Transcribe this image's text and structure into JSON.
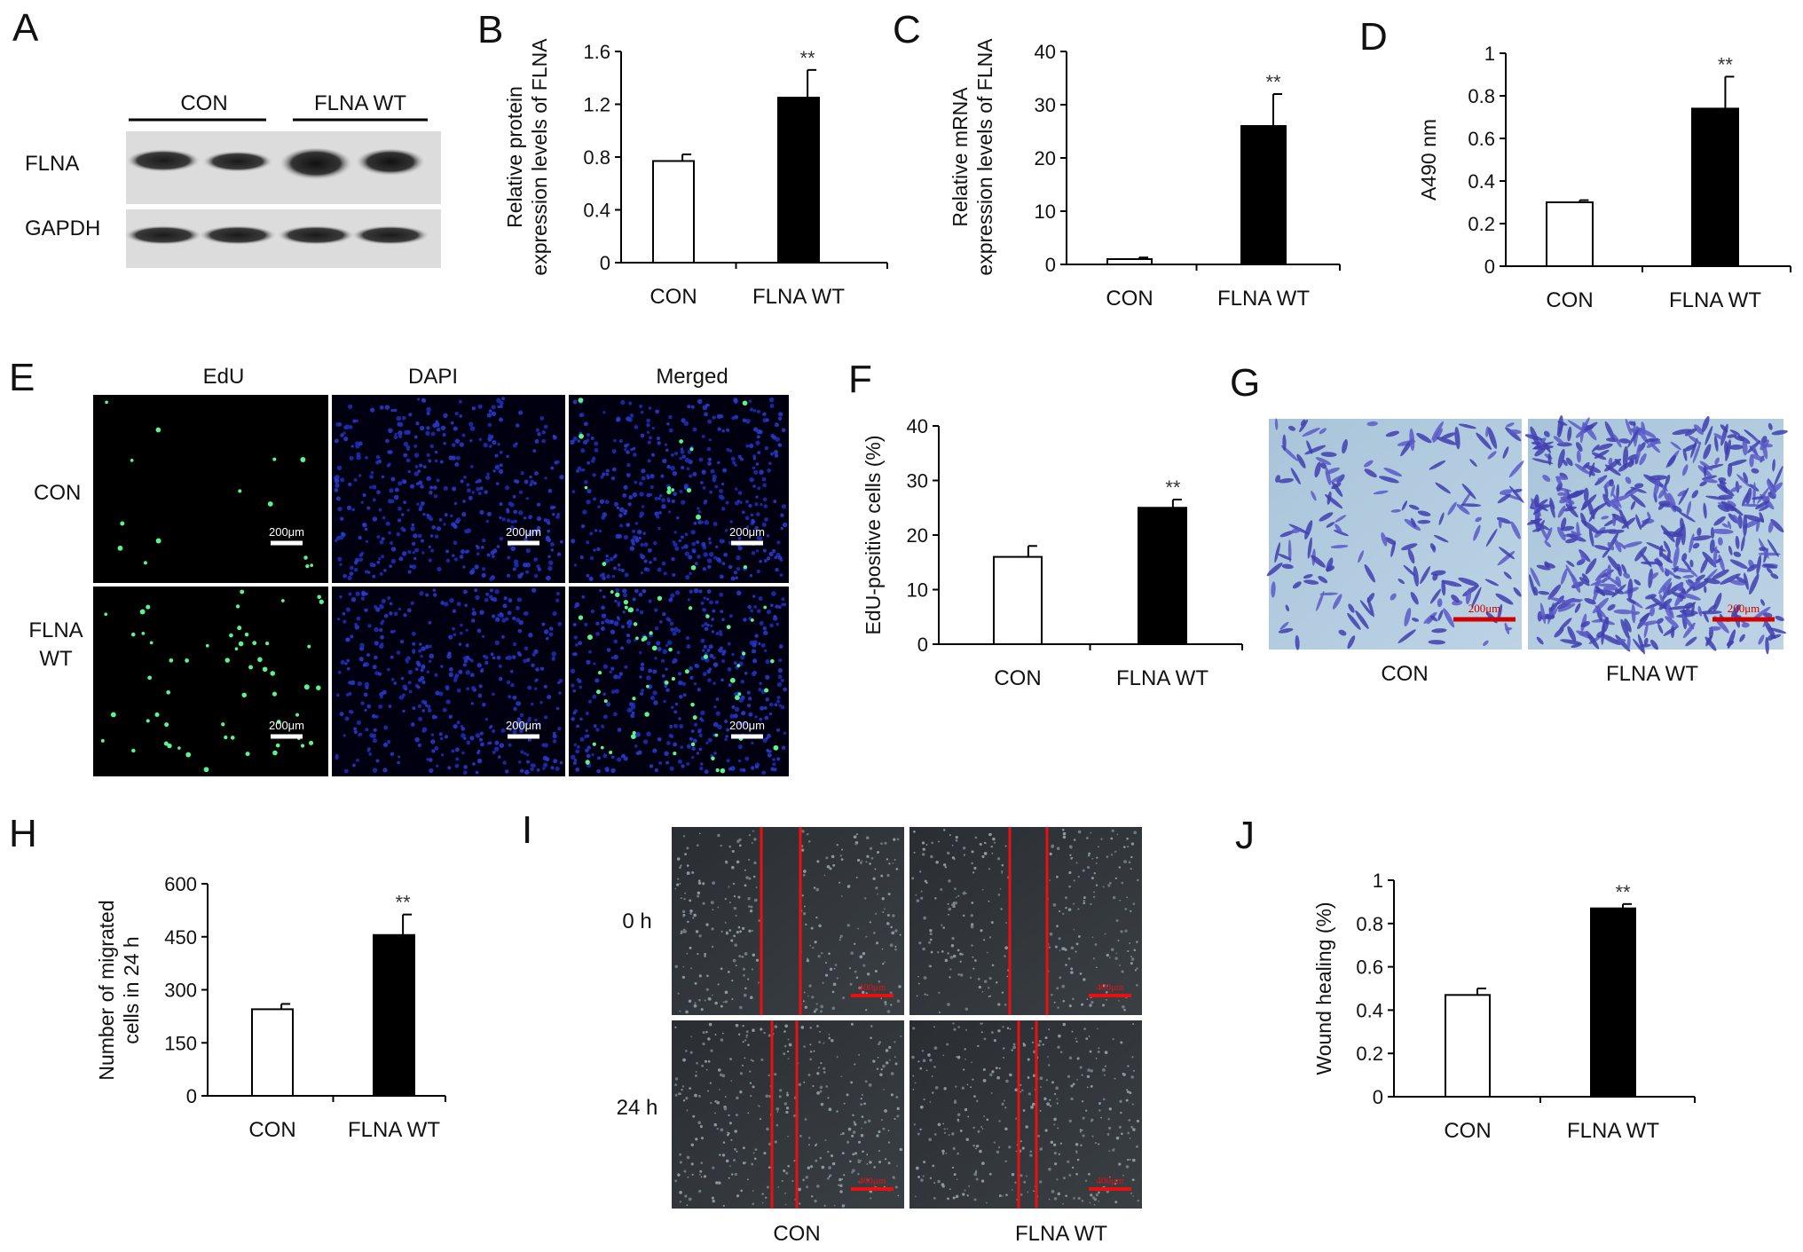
{
  "panels": {
    "A": {
      "letter": "A",
      "groups": [
        "CON",
        "FLNA WT"
      ],
      "rows": [
        "FLNA",
        "GAPDH"
      ]
    },
    "E": {
      "letter": "E",
      "columns": [
        "EdU",
        "DAPI",
        "Merged"
      ],
      "rows": [
        "CON",
        "FLNA WT"
      ],
      "scale_bar": "200μm"
    },
    "G": {
      "letter": "G",
      "labels": [
        "CON",
        "FLNA WT"
      ],
      "scale_bar": "200μm"
    },
    "I": {
      "letter": "I",
      "rows": [
        "0 h",
        "24 h"
      ],
      "columns": [
        "CON",
        "FLNA WT"
      ],
      "scale_bar": "400μm"
    }
  },
  "chart_data": [
    {
      "id": "B",
      "letter": "B",
      "type": "bar",
      "categories": [
        "CON",
        "FLNA WT"
      ],
      "values": [
        0.77,
        1.25
      ],
      "errors": [
        0.05,
        0.21
      ],
      "bar_fills": [
        "#ffffff",
        "#000000"
      ],
      "ylabel": "Relative protein expression levels of FLNA",
      "ylim": [
        0,
        1.6
      ],
      "yticks": [
        "0",
        "0.4",
        "0.8",
        "1.2",
        "1.6"
      ],
      "significance": [
        "",
        "**"
      ]
    },
    {
      "id": "C",
      "letter": "C",
      "type": "bar",
      "categories": [
        "CON",
        "FLNA WT"
      ],
      "values": [
        1,
        26
      ],
      "errors": [
        0.3,
        6
      ],
      "bar_fills": [
        "#ffffff",
        "#000000"
      ],
      "ylabel": "Relative mRNA expression levels of FLNA",
      "ylim": [
        0,
        40
      ],
      "yticks": [
        "0",
        "10",
        "20",
        "30",
        "40"
      ],
      "significance": [
        "",
        "**"
      ]
    },
    {
      "id": "D",
      "letter": "D",
      "type": "bar",
      "categories": [
        "CON",
        "FLNA WT"
      ],
      "values": [
        0.3,
        0.74
      ],
      "errors": [
        0.01,
        0.15
      ],
      "bar_fills": [
        "#ffffff",
        "#000000"
      ],
      "ylabel": "A490 nm",
      "ylim": [
        0,
        1
      ],
      "yticks": [
        "0",
        "0.2",
        "0.4",
        "0.6",
        "0.8",
        "1"
      ],
      "significance": [
        "",
        "**"
      ]
    },
    {
      "id": "F",
      "letter": "F",
      "type": "bar",
      "categories": [
        "CON",
        "FLNA WT"
      ],
      "values": [
        16,
        25
      ],
      "errors": [
        2,
        1.5
      ],
      "bar_fills": [
        "#ffffff",
        "#000000"
      ],
      "ylabel": "EdU-positive cells (%)",
      "ylim": [
        0,
        40
      ],
      "yticks": [
        "0",
        "10",
        "20",
        "30",
        "40"
      ],
      "significance": [
        "",
        "**"
      ]
    },
    {
      "id": "H",
      "letter": "H",
      "type": "bar",
      "categories": [
        "CON",
        "FLNA WT"
      ],
      "values": [
        245,
        455
      ],
      "errors": [
        15,
        58
      ],
      "bar_fills": [
        "#ffffff",
        "#000000"
      ],
      "ylabel": "Number of migrated cells in 24 h",
      "ylim": [
        0,
        600
      ],
      "yticks": [
        "0",
        "150",
        "300",
        "450",
        "600"
      ],
      "significance": [
        "",
        "**"
      ]
    },
    {
      "id": "J",
      "letter": "J",
      "type": "bar",
      "categories": [
        "CON",
        "FLNA WT"
      ],
      "values": [
        0.47,
        0.87
      ],
      "errors": [
        0.03,
        0.02
      ],
      "bar_fills": [
        "#ffffff",
        "#000000"
      ],
      "ylabel": "Wound healing (%)",
      "ylim": [
        0,
        1
      ],
      "yticks": [
        "0",
        "0.2",
        "0.4",
        "0.6",
        "0.8",
        "1"
      ],
      "significance": [
        "",
        "**"
      ]
    }
  ]
}
